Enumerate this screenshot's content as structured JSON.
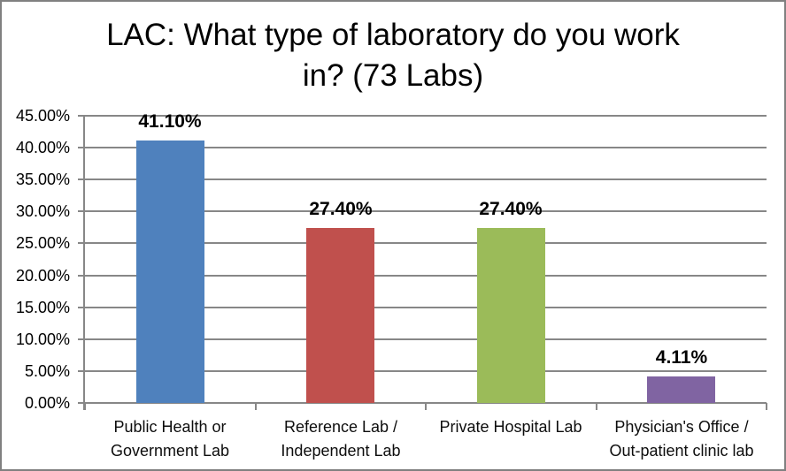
{
  "title_lines": [
    "LAC: What type of laboratory do you work",
    "in? (73 Labs)"
  ],
  "chart_data": {
    "type": "bar",
    "title": "LAC: What type of laboratory do you work in? (73 Labs)",
    "categories": [
      "Public Health or Government Lab",
      "Reference Lab / Independent Lab",
      "Private Hospital Lab",
      "Physician's Office / Out-patient clinic lab"
    ],
    "category_label_lines": [
      [
        "Public Health or",
        "Government Lab"
      ],
      [
        "Reference Lab /",
        "Independent Lab"
      ],
      [
        "Private Hospital Lab"
      ],
      [
        "Physician's Office /",
        "Out-patient clinic lab"
      ]
    ],
    "values": [
      41.1,
      27.4,
      27.4,
      4.11
    ],
    "data_labels": [
      "41.10%",
      "27.40%",
      "27.40%",
      "4.11%"
    ],
    "bar_colors": [
      "#4F81BD",
      "#C0504D",
      "#9BBB59",
      "#8064A2"
    ],
    "ylim": [
      0,
      45
    ],
    "ytick_step": 5,
    "ytick_labels": [
      "0.00%",
      "5.00%",
      "10.00%",
      "15.00%",
      "20.00%",
      "25.00%",
      "30.00%",
      "35.00%",
      "40.00%",
      "45.00%"
    ],
    "grid": true,
    "legend": "none",
    "colors": {
      "gridline": "#878787",
      "axis": "#878787",
      "text": "#000000",
      "frame_border": "#808080",
      "background": "#FFFFFF"
    }
  }
}
